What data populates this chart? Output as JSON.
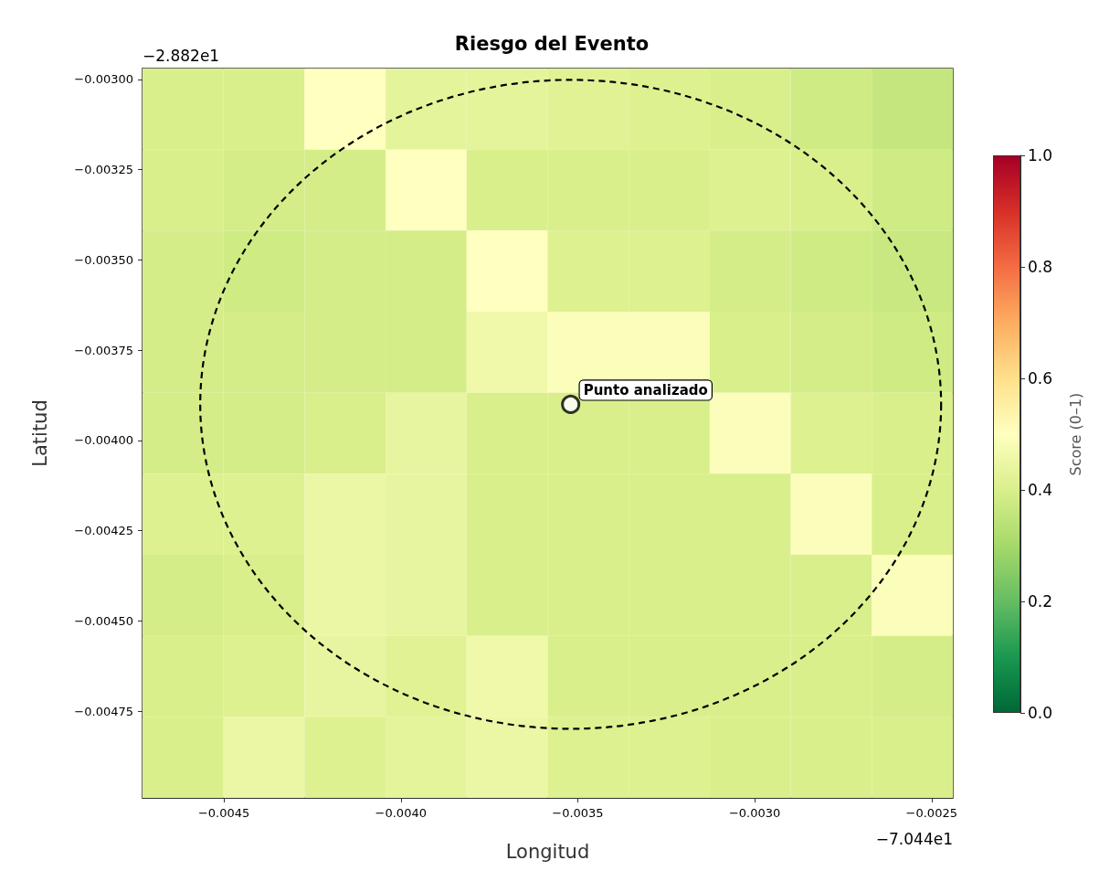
{
  "chart_data": {
    "type": "heatmap",
    "title": "Riesgo del Evento",
    "xlabel": "Longitud",
    "ylabel": "Latitud",
    "clabel": "Score (0–1)",
    "cells": [
      [
        0.4,
        0.4,
        0.5,
        0.43,
        0.43,
        0.42,
        0.41,
        0.4,
        0.38,
        0.36
      ],
      [
        0.4,
        0.39,
        0.39,
        0.5,
        0.4,
        0.4,
        0.4,
        0.41,
        0.4,
        0.38
      ],
      [
        0.39,
        0.38,
        0.39,
        0.39,
        0.5,
        0.41,
        0.41,
        0.39,
        0.38,
        0.37
      ],
      [
        0.39,
        0.39,
        0.39,
        0.39,
        0.46,
        0.49,
        0.49,
        0.4,
        0.39,
        0.38
      ],
      [
        0.39,
        0.39,
        0.4,
        0.44,
        0.4,
        0.4,
        0.4,
        0.49,
        0.41,
        0.4
      ],
      [
        0.41,
        0.41,
        0.45,
        0.44,
        0.4,
        0.4,
        0.4,
        0.4,
        0.49,
        0.4
      ],
      [
        0.39,
        0.4,
        0.45,
        0.44,
        0.4,
        0.4,
        0.4,
        0.4,
        0.4,
        0.49
      ],
      [
        0.4,
        0.41,
        0.44,
        0.42,
        0.46,
        0.4,
        0.4,
        0.4,
        0.4,
        0.39
      ],
      [
        0.4,
        0.45,
        0.41,
        0.43,
        0.45,
        0.41,
        0.41,
        0.4,
        0.4,
        0.4
      ]
    ],
    "clim": [
      0,
      1
    ],
    "cticks": [
      {
        "value": 0,
        "label": "0.0"
      },
      {
        "value": 0.2,
        "label": "0.2"
      },
      {
        "value": 0.4,
        "label": "0.4"
      },
      {
        "value": 0.6,
        "label": "0.6"
      },
      {
        "value": 0.8,
        "label": "0.8"
      },
      {
        "value": 1,
        "label": "1.0"
      }
    ],
    "xlim": [
      -0.00473,
      -0.00244
    ],
    "xticks": [
      {
        "value": -0.0045,
        "label": "−0.0045"
      },
      {
        "value": -0.004,
        "label": "−0.0040"
      },
      {
        "value": -0.0035,
        "label": "−0.0035"
      },
      {
        "value": -0.003,
        "label": "−0.0030"
      },
      {
        "value": -0.0025,
        "label": "−0.0025"
      }
    ],
    "ylim": [
      -0.00499,
      -0.00297
    ],
    "yticks": [
      {
        "value": -0.003,
        "label": "−0.00300"
      },
      {
        "value": -0.00325,
        "label": "−0.00325"
      },
      {
        "value": -0.0035,
        "label": "−0.00350"
      },
      {
        "value": -0.00375,
        "label": "−0.00375"
      },
      {
        "value": -0.004,
        "label": "−0.00400"
      },
      {
        "value": -0.00425,
        "label": "−0.00425"
      },
      {
        "value": -0.0045,
        "label": "−0.00450"
      },
      {
        "value": -0.00475,
        "label": "−0.00475"
      }
    ],
    "series": [
      {
        "type": "scatter",
        "color": "#ffffff",
        "marker": "circle",
        "x": [
          -0.00352
        ],
        "values": [
          -0.0039
        ]
      }
    ],
    "annotations": [
      "−2.882e1",
      "−7.044e1",
      {
        "text": "Punto analizado",
        "x": -0.00352,
        "y": -0.0039
      }
    ],
    "grid": false
  }
}
